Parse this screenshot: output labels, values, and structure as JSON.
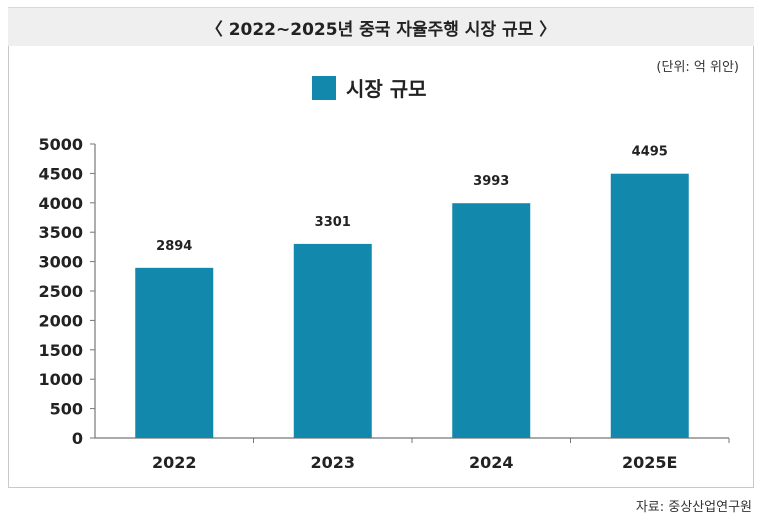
{
  "header": {
    "title": "〈 2022~2025년 중국 자율주행 시장 규모 〉"
  },
  "unit_label": "(단위: 억 위안)",
  "source_label": "자료: 중상산업연구원",
  "colors": {
    "bar": "#1289ac",
    "axis": "#777777",
    "text": "#222222"
  },
  "chart_data": {
    "type": "bar",
    "categories": [
      "2022",
      "2023",
      "2024",
      "2025E"
    ],
    "series": [
      {
        "name": "시장 규모",
        "values": [
          2894,
          3301,
          3993,
          4495
        ]
      }
    ],
    "ylim": [
      0,
      5000
    ],
    "yticks": [
      0,
      500,
      1000,
      1500,
      2000,
      2500,
      3000,
      3500,
      4000,
      4500,
      5000
    ],
    "grid": false,
    "legend_position": "top-center",
    "data_labels": [
      "2894",
      "3301",
      "3993",
      "4495"
    ]
  }
}
